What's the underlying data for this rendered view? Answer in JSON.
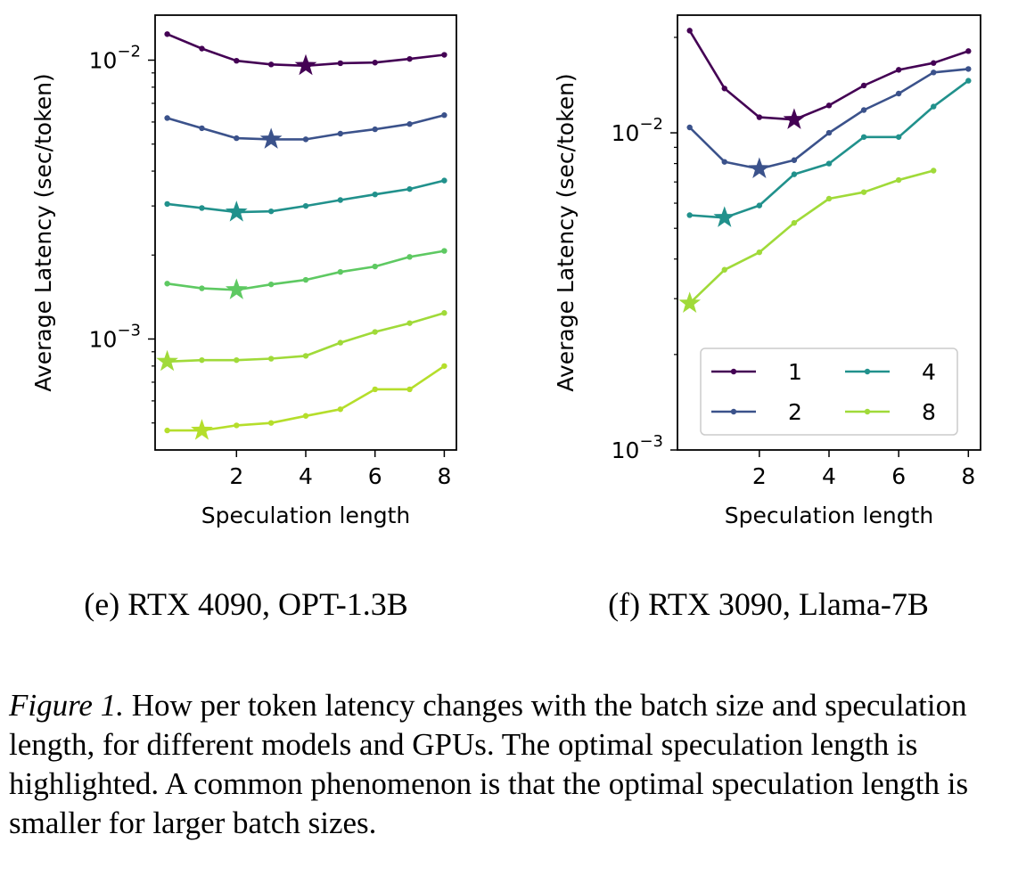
{
  "colors": {
    "1": "#440154",
    "2": "#3b528b",
    "4": "#21918c",
    "8": "#5ec962",
    "16": "#a0da39"
  },
  "chart_data": [
    {
      "type": "line",
      "subcaption": "(e) RTX 4090, OPT-1.3B",
      "xlabel": "Speculation length",
      "ylabel": "Average Latency (sec/token)",
      "yscale": "log",
      "xlim": [
        -0.35,
        8.35
      ],
      "ylim": [
        0.0004,
        0.0145
      ],
      "xticks": [
        2,
        4,
        6,
        8
      ],
      "xtick_labels": [
        "2",
        "4",
        "6",
        "8"
      ],
      "yticks": [
        0.001,
        0.01
      ],
      "ytick_labels": [
        {
          "base": "10",
          "exp": "−3"
        },
        {
          "base": "10",
          "exp": "−2"
        }
      ],
      "legend": null,
      "x": [
        0,
        1,
        2,
        3,
        4,
        5,
        6,
        7,
        8
      ],
      "series": [
        {
          "color_key": "1",
          "values": [
            0.0124,
            0.011,
            0.00995,
            0.00965,
            0.00955,
            0.00975,
            0.0098,
            0.0101,
            0.01045
          ],
          "best_index": 4
        },
        {
          "color_key": "2",
          "values": [
            0.0062,
            0.0057,
            0.00525,
            0.0052,
            0.0052,
            0.00545,
            0.00565,
            0.0059,
            0.00635
          ],
          "best_index": 3
        },
        {
          "color_key": "4",
          "values": [
            0.00305,
            0.00295,
            0.00285,
            0.00287,
            0.003,
            0.00315,
            0.0033,
            0.00345,
            0.0037
          ],
          "best_index": 2
        },
        {
          "color_key": "8",
          "values": [
            0.00158,
            0.00152,
            0.0015,
            0.00157,
            0.00163,
            0.00174,
            0.00182,
            0.00197,
            0.00207
          ],
          "best_index": 2
        },
        {
          "color_key": "16",
          "values": [
            0.00083,
            0.00084,
            0.00084,
            0.00085,
            0.00087,
            0.00097,
            0.00106,
            0.00114,
            0.00124
          ],
          "best_index": 0
        },
        {
          "color_key": "32",
          "values": [
            0.00047,
            0.00047,
            0.00049,
            0.0005,
            0.00053,
            0.00056,
            0.00066,
            0.00066,
            0.0008
          ],
          "best_index": 1
        }
      ]
    },
    {
      "type": "line",
      "subcaption": "(f) RTX 3090, Llama-7B",
      "xlabel": "Speculation length",
      "ylabel": "Average Latency (sec/token)",
      "yscale": "log",
      "xlim": [
        -0.35,
        8.35
      ],
      "ylim": [
        0.001,
        0.0235
      ],
      "xticks": [
        2,
        4,
        6,
        8
      ],
      "xtick_labels": [
        "2",
        "4",
        "6",
        "8"
      ],
      "yticks": [
        0.001,
        0.01
      ],
      "ytick_labels": [
        {
          "base": "10",
          "exp": "−3"
        },
        {
          "base": "10",
          "exp": "−2"
        }
      ],
      "legend": {
        "placement": "lower-right",
        "ncol": 2
      },
      "x": [
        0,
        1,
        2,
        3,
        4,
        5,
        6,
        7,
        8
      ],
      "series": [
        {
          "name": "1",
          "color_key": "1",
          "values": [
            0.021,
            0.0138,
            0.0112,
            0.011,
            0.0122,
            0.0141,
            0.0158,
            0.0166,
            0.0181
          ],
          "best_index": 3
        },
        {
          "name": "2",
          "color_key": "2",
          "values": [
            0.0104,
            0.0081,
            0.0077,
            0.0082,
            0.01,
            0.0118,
            0.0133,
            0.0155,
            0.0159
          ],
          "best_index": 2
        },
        {
          "name": "4",
          "color_key": "4",
          "values": [
            0.0055,
            0.0054,
            0.0059,
            0.0074,
            0.008,
            0.0097,
            0.0097,
            0.0121,
            0.0146
          ],
          "best_index": 1
        },
        {
          "name": "8",
          "color_key": "16",
          "values": [
            0.0029,
            0.0037,
            0.0042,
            0.0052,
            0.0062,
            0.0065,
            0.0071,
            0.0076,
            null
          ],
          "best_index": 0
        }
      ]
    }
  ],
  "caption": {
    "label": "Figure 1.",
    "text": " How per token latency changes with the batch size and speculation length, for different models and GPUs. The optimal speculation length is highlighted. A common phenomenon is that the optimal speculation length is smaller for larger batch sizes."
  }
}
